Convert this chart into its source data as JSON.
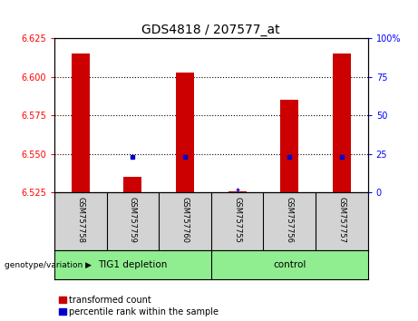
{
  "title": "GDS4818 / 207577_at",
  "samples": [
    "GSM757758",
    "GSM757759",
    "GSM757760",
    "GSM757755",
    "GSM757756",
    "GSM757757"
  ],
  "red_values": [
    6.615,
    6.535,
    6.603,
    6.526,
    6.585,
    6.615
  ],
  "blue_markers": [
    null,
    6.548,
    6.548,
    null,
    6.548,
    6.548
  ],
  "small_marker": [
    null,
    null,
    null,
    6.527,
    null,
    null
  ],
  "ylim_left": [
    6.525,
    6.625
  ],
  "ylim_right": [
    0,
    100
  ],
  "left_ticks": [
    6.525,
    6.55,
    6.575,
    6.6,
    6.625
  ],
  "right_ticks": [
    0,
    25,
    50,
    75,
    100
  ],
  "dotted_lines": [
    6.55,
    6.575,
    6.6
  ],
  "group1_label": "TIG1 depletion",
  "group2_label": "control",
  "group1_indices": [
    0,
    1,
    2
  ],
  "group2_indices": [
    3,
    4,
    5
  ],
  "bar_width": 0.35,
  "legend_red": "transformed count",
  "legend_blue": "percentile rank within the sample",
  "genotype_label": "genotype/variation",
  "left_tick_color": "red",
  "right_tick_color": "blue",
  "bar_color_red": "#CC0000",
  "bar_color_blue": "#0000CC",
  "background_sample": "#D3D3D3",
  "background_group": "#90EE90"
}
